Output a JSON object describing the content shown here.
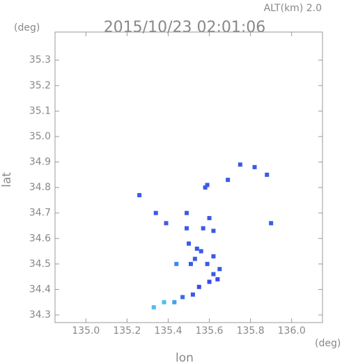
{
  "chart_data": {
    "type": "scatter",
    "title": "2015/10/23 02:01:06",
    "subtitle": "ALT(km) 2.0",
    "y_unit": "(deg)",
    "x_unit": "(deg)",
    "x_label": "lon",
    "y_label": "lat",
    "xlim": [
      134.85,
      136.15
    ],
    "ylim": [
      34.27,
      35.41
    ],
    "xticks": [
      {
        "value": 135,
        "label": "135.0"
      },
      135.2,
      135.4,
      135.6,
      135.8,
      {
        "value": 136,
        "label": "136.0"
      }
    ],
    "yticks": [
      34.3,
      34.4,
      34.5,
      34.6,
      34.7,
      34.8,
      34.9,
      {
        "value": 35,
        "label": "35.0"
      },
      35.1,
      35.2,
      35.3
    ],
    "x": [
      135.26,
      135.34,
      135.39,
      135.44,
      135.49,
      135.49,
      135.5,
      135.51,
      135.53,
      135.54,
      135.56,
      135.55,
      135.52,
      135.47,
      135.43,
      135.38,
      135.33,
      135.59,
      135.62,
      135.62,
      135.6,
      135.64,
      135.57,
      135.6,
      135.58,
      135.59,
      135.62,
      135.65,
      135.69,
      135.75,
      135.82,
      135.88,
      135.9
    ],
    "y": [
      34.77,
      34.7,
      34.66,
      34.5,
      34.7,
      34.64,
      34.58,
      34.5,
      34.52,
      34.56,
      34.55,
      34.41,
      34.38,
      34.37,
      34.35,
      34.35,
      34.33,
      34.5,
      34.53,
      34.46,
      34.43,
      34.44,
      34.64,
      34.68,
      34.8,
      34.81,
      34.63,
      34.48,
      34.83,
      34.89,
      34.88,
      34.85,
      34.66
    ],
    "colors": [
      "#3a5ae8",
      "#3a5ae8",
      "#3a5ae8",
      "#3a8ae8",
      "#3a5ae8",
      "#3a5ae8",
      "#3a5ae8",
      "#3a5ae8",
      "#3a5ae8",
      "#3a5ae8",
      "#3a5ae8",
      "#3a4ae8",
      "#3a5ae8",
      "#3a6ae8",
      "#44a0ee",
      "#55bbee",
      "#55bbee",
      "#3a5ae8",
      "#3a5ae8",
      "#3a5ae8",
      "#3a4ae8",
      "#3a4ae8",
      "#3a5ae8",
      "#3a5ae8",
      "#3a5ae8",
      "#3a5ae8",
      "#3a5ae8",
      "#3a5ae8",
      "#3a5ae8",
      "#3a5ae8",
      "#3a5ae8",
      "#3a5ae8",
      "#3a5ae8"
    ]
  }
}
